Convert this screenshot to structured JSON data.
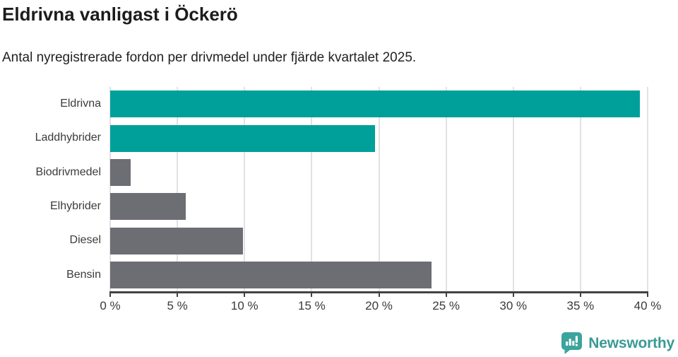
{
  "header": {
    "title": "Eldrivna vanligast i Öckerö",
    "subtitle": "Antal nyregistrerade fordon per drivmedel under fjärde kvartalet 2025."
  },
  "chart_data": {
    "type": "bar",
    "orientation": "horizontal",
    "title": "Eldrivna vanligast i Öckerö",
    "subtitle": "Antal nyregistrerade fordon per drivmedel under fjärde kvartalet 2025.",
    "categories": [
      "Eldrivna",
      "Laddhybrider",
      "Biodrivmedel",
      "Elhybrider",
      "Diesel",
      "Bensin"
    ],
    "values": [
      39.4,
      19.7,
      1.5,
      5.6,
      9.9,
      23.9
    ],
    "unit": "%",
    "xlim": [
      0,
      40
    ],
    "xticks": [
      0,
      5,
      10,
      15,
      20,
      25,
      30,
      35,
      40
    ],
    "xtick_labels": [
      "0 %",
      "5 %",
      "10 %",
      "15 %",
      "20 %",
      "25 %",
      "30 %",
      "35 %",
      "40 %"
    ],
    "bar_colors": [
      "#00a09a",
      "#00a09a",
      "#6d6d74",
      "#6d6d74",
      "#6d6d74",
      "#6d6d74"
    ],
    "highlight_color": "#00a09a",
    "default_color": "#6d6d74",
    "grid": true,
    "gridline_color": "#e2e2e2",
    "axis_color": "#434343",
    "legend": "none"
  },
  "branding": {
    "logo_text": "Newsworthy",
    "logo_text_color": "#3a9a94",
    "icon": "newsworthy-chart-bubble-icon",
    "icon_color": "#3aa49d"
  }
}
